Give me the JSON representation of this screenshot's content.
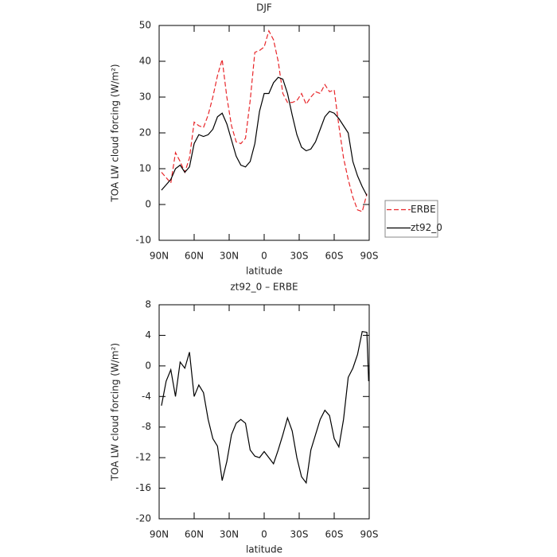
{
  "chart_data": [
    {
      "type": "line",
      "title": "DJF",
      "xlabel": "latitude",
      "ylabel": "TOA LW cloud forcing (W/m²)",
      "x": [
        88,
        84,
        80,
        76,
        72,
        68,
        64,
        60,
        56,
        52,
        48,
        44,
        40,
        36,
        32,
        28,
        24,
        20,
        16,
        12,
        8,
        4,
        0,
        -4,
        -8,
        -12,
        -16,
        -20,
        -24,
        -28,
        -32,
        -36,
        -40,
        -44,
        -48,
        -52,
        -56,
        -60,
        -64,
        -68,
        -72,
        -76,
        -80,
        -84,
        -88
      ],
      "series": [
        {
          "name": "ERBE",
          "color": "#e8262a",
          "line_style": "dashed",
          "values": [
            9,
            7.5,
            6,
            14.5,
            12,
            9,
            13,
            23,
            22,
            21.5,
            25,
            30,
            36,
            40.5,
            30,
            22,
            17.5,
            17,
            18.5,
            29,
            42.5,
            43,
            44,
            48.5,
            46,
            40,
            31,
            28.5,
            28.5,
            29,
            31,
            28,
            30,
            31.5,
            31,
            33.5,
            31.5,
            32,
            22,
            13,
            7,
            2,
            -1.5,
            -2,
            3
          ]
        },
        {
          "name": "zt92_0",
          "color": "#000000",
          "line_style": "solid",
          "values": [
            4,
            5.5,
            7,
            10,
            11,
            9,
            10.5,
            17,
            19.5,
            19,
            19.5,
            21,
            24.5,
            25.5,
            22.5,
            18,
            13.5,
            11,
            10.5,
            12,
            17,
            26,
            31,
            31,
            34,
            35.5,
            35,
            31,
            25,
            19.5,
            16,
            15,
            15.5,
            17.5,
            21,
            24.5,
            26,
            25.5,
            24,
            22,
            20,
            12,
            8,
            5,
            2.5
          ]
        }
      ],
      "xlim": [
        90,
        -90
      ],
      "xticks": [
        {
          "value": 90,
          "label": "90N"
        },
        {
          "value": 60,
          "label": "60N"
        },
        {
          "value": 30,
          "label": "30N"
        },
        0,
        {
          "value": -30,
          "label": "30S"
        },
        {
          "value": -60,
          "label": "60S"
        },
        {
          "value": -90,
          "label": "90S"
        }
      ],
      "ylim": [
        -10,
        50
      ],
      "yticks": [
        -10,
        0,
        10,
        20,
        30,
        40,
        50
      ],
      "legend": "right"
    },
    {
      "type": "line",
      "title": "zt92_0 – ERBE",
      "xlabel": "latitude",
      "ylabel": "TOA LW cloud forcing (W/m²)",
      "x": [
        88,
        84,
        80,
        76,
        72,
        68,
        64,
        60,
        56,
        52,
        48,
        44,
        40,
        36,
        32,
        28,
        24,
        20,
        16,
        12,
        8,
        4,
        0,
        -4,
        -8,
        -12,
        -16,
        -20,
        -24,
        -28,
        -32,
        -36,
        -40,
        -44,
        -48,
        -52,
        -56,
        -60,
        -64,
        -68,
        -72,
        -76,
        -80,
        -84,
        -88,
        -89.5
      ],
      "series": [
        {
          "color": "#000000",
          "line_style": "solid",
          "values": [
            -5.2,
            -2,
            -0.5,
            -4,
            0.5,
            -0.3,
            1.8,
            -4,
            -2.5,
            -3.5,
            -7,
            -9.5,
            -10.5,
            -15,
            -12.5,
            -9,
            -7.5,
            -7,
            -7.5,
            -11,
            -11.8,
            -12,
            -11.2,
            -12,
            -12.8,
            -11,
            -9,
            -6.8,
            -8.5,
            -12,
            -14.5,
            -15.3,
            -11,
            -9,
            -7,
            -5.8,
            -6.5,
            -9.5,
            -10.6,
            -7,
            -1.5,
            -0.3,
            1.5,
            4.5,
            4.4,
            -2
          ]
        }
      ],
      "xlim": [
        90,
        -90
      ],
      "xticks": [
        {
          "value": 90,
          "label": "90N"
        },
        {
          "value": 60,
          "label": "60N"
        },
        {
          "value": 30,
          "label": "30N"
        },
        0,
        {
          "value": -30,
          "label": "30S"
        },
        {
          "value": -60,
          "label": "60S"
        },
        {
          "value": -90,
          "label": "90S"
        }
      ],
      "ylim": [
        -20,
        8
      ],
      "yticks": [
        -20,
        -16,
        -12,
        -8,
        -4,
        0,
        4,
        8
      ]
    }
  ]
}
